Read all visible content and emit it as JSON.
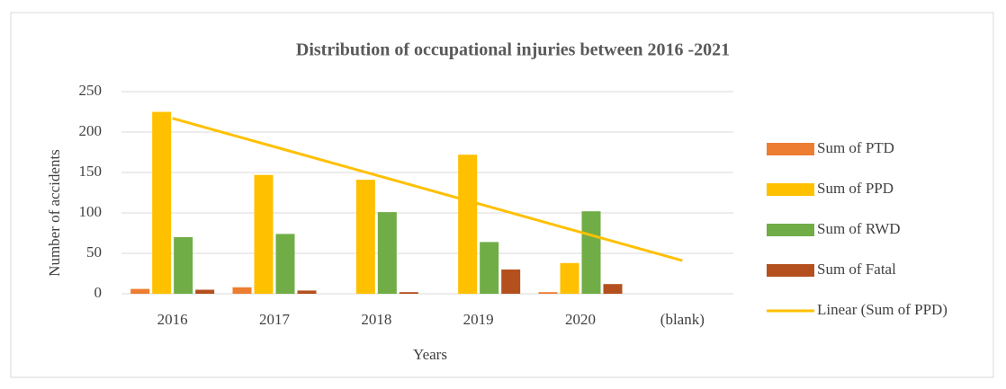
{
  "chart_data": {
    "type": "bar",
    "title": "Distribution of occupational injuries between  2016 -2021",
    "x_label": "Years",
    "y_label": "Number of accidents",
    "categories": [
      "2016",
      "2017",
      "2018",
      "2019",
      "2020",
      "(blank)"
    ],
    "series": [
      {
        "name": "Sum of PTD",
        "color": "#ed7d31",
        "values": [
          6,
          8,
          0,
          0,
          2,
          null
        ]
      },
      {
        "name": "Sum of PPD",
        "color": "#ffc000",
        "values": [
          225,
          147,
          141,
          172,
          38,
          null
        ]
      },
      {
        "name": "Sum of RWD",
        "color": "#70ad47",
        "values": [
          70,
          74,
          101,
          64,
          102,
          null
        ]
      },
      {
        "name": "Sum of Fatal",
        "color": "#b4501e",
        "values": [
          5,
          4,
          2,
          30,
          12,
          null
        ]
      },
      {
        "name": "Linear (Sum of PPD)",
        "color": "#ffc000",
        "type": "line",
        "values": [
          217,
          181.8,
          146.6,
          111.4,
          76.2,
          41
        ]
      }
    ],
    "ylim": [
      0,
      250
    ],
    "yticks": [
      0,
      50,
      100,
      150,
      200,
      250
    ],
    "grid": true,
    "legend": "right"
  }
}
